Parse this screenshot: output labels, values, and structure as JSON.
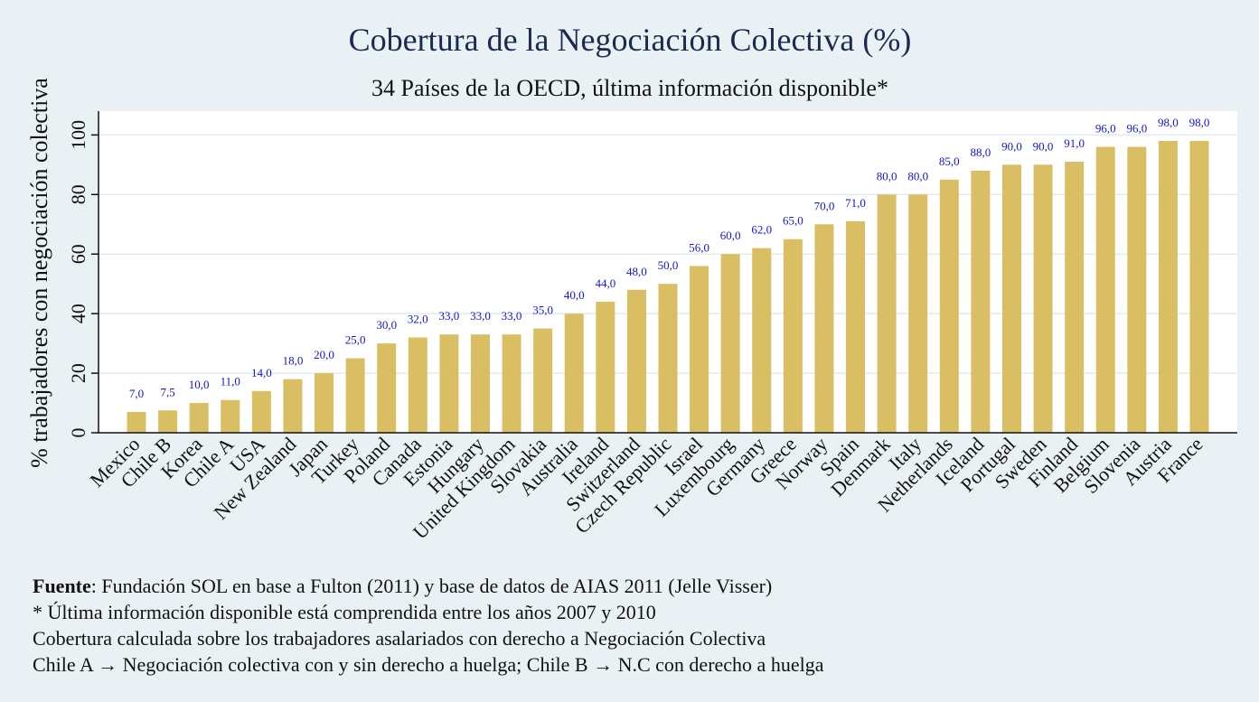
{
  "chart_data": {
    "type": "bar",
    "title": "Cobertura de la Negociación Colectiva (%)",
    "subtitle": "34 Países de la OECD, última información disponible*",
    "xlabel": "",
    "ylabel": "% trabajadores con negociación colectiva",
    "ylim": [
      0,
      108
    ],
    "yticks": [
      0,
      20,
      40,
      60,
      80,
      100
    ],
    "grid": true,
    "bar_color": "#d9be63",
    "label_color": "#1515c8",
    "categories": [
      "Mexico",
      "Chile B",
      "Korea",
      "Chile A",
      "USA",
      "New Zealand",
      "Japan",
      "Turkey",
      "Poland",
      "Canada",
      "Estonia",
      "Hungary",
      "United Kingdom",
      "Slovakia",
      "Australia",
      "Ireland",
      "Switzerland",
      "Czech Republic",
      "Israel",
      "Luxembourg",
      "Germany",
      "Greece",
      "Norway",
      "Spain",
      "Denmark",
      "Italy",
      "Netherlands",
      "Iceland",
      "Portugal",
      "Sweden",
      "Finland",
      "Belgium",
      "Slovenia",
      "Austria",
      "France"
    ],
    "values": [
      7.0,
      7.5,
      10.0,
      11.0,
      14.0,
      18.0,
      20.0,
      25.0,
      30.0,
      32.0,
      33.0,
      33.0,
      33.0,
      35.0,
      40.0,
      44.0,
      48.0,
      50.0,
      56.0,
      60.0,
      62.0,
      65.0,
      70.0,
      71.0,
      80.0,
      80.0,
      85.0,
      88.0,
      90.0,
      90.0,
      91.0,
      96.0,
      96.0,
      98.0,
      98.0
    ],
    "value_labels": [
      "7,0",
      "7,5",
      "10,0",
      "11,0",
      "14,0",
      "18,0",
      "20,0",
      "25,0",
      "30,0",
      "32,0",
      "33,0",
      "33,0",
      "33,0",
      "35,0",
      "40,0",
      "44,0",
      "48,0",
      "50,0",
      "56,0",
      "60,0",
      "62,0",
      "65,0",
      "70,0",
      "71,0",
      "80,0",
      "80,0",
      "85,0",
      "88,0",
      "90,0",
      "90,0",
      "91,0",
      "96,0",
      "96,0",
      "98,0",
      "98,0"
    ]
  },
  "footnotes": {
    "source_label": "Fuente",
    "source_text": ": Fundación SOL en base a Fulton (2011) y base de datos de AIAS 2011 (Jelle Visser)",
    "line2": "* Última información disponible está comprendida entre los años 2007 y 2010",
    "line3": "Cobertura calculada sobre los trabajadores asalariados con derecho a Negociación Colectiva",
    "line4": "Chile A → Negociación colectiva con y sin derecho a huelga; Chile B → N.C con derecho a huelga"
  }
}
